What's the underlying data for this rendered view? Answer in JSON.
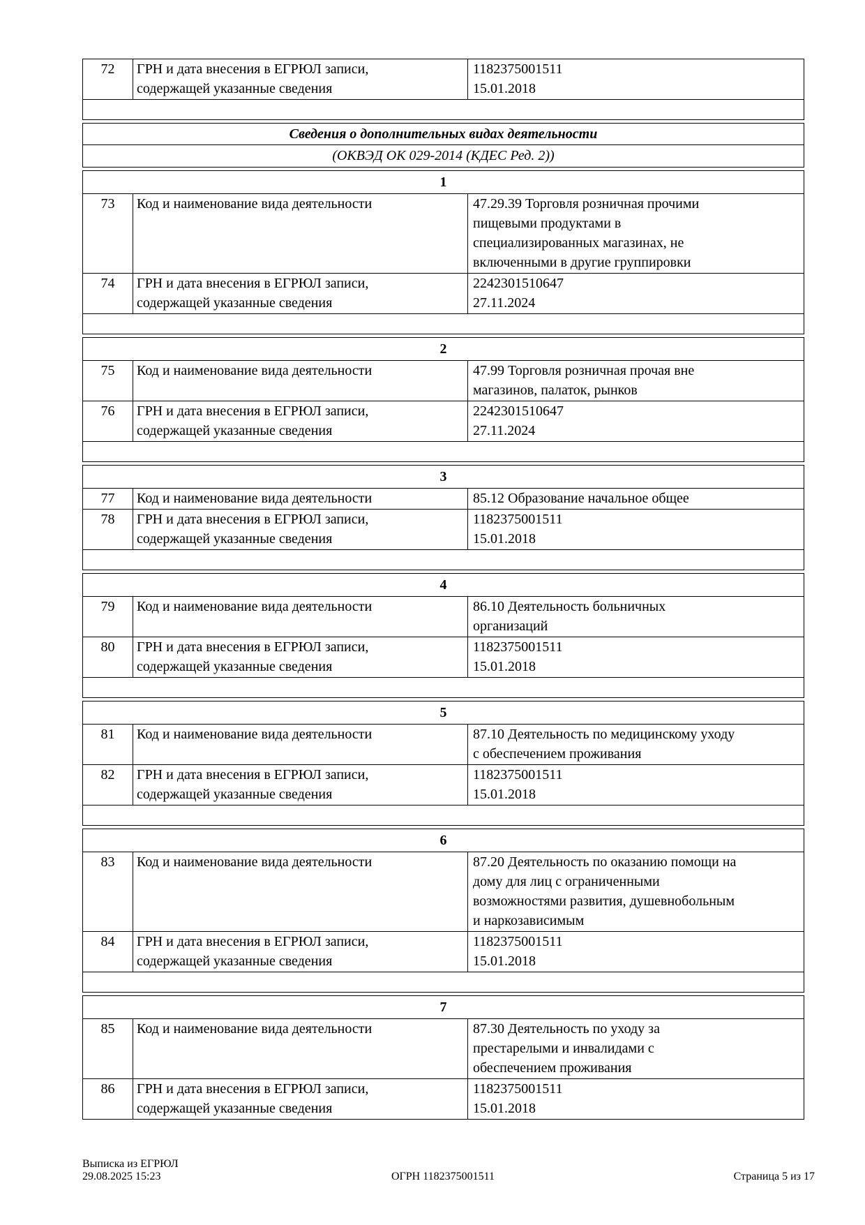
{
  "colors": {
    "page_bg": "#ffffff",
    "text": "#000000",
    "border": "#000000"
  },
  "continuation_row": {
    "num": "72",
    "label": "ГРН и дата внесения в ЕГРЮЛ записи,\nсодержащей указанные сведения",
    "value": "1182375001511\n15.01.2018"
  },
  "section_header": {
    "title": "Сведения о дополнительных видах деятельности",
    "subtitle": "(ОКВЭД ОК 029-2014 (КДЕС Ред. 2))"
  },
  "blocks": [
    {
      "index": "1",
      "rows": [
        {
          "num": "73",
          "label": "Код и наименование вида деятельности",
          "value": "47.29.39 Торговля розничная прочими\nпищевыми продуктами в\nспециализированных магазинах, не\nвключенными в другие группировки"
        },
        {
          "num": "74",
          "label": "ГРН и дата внесения в ЕГРЮЛ записи,\nсодержащей указанные сведения",
          "value": "2242301510647\n27.11.2024"
        }
      ]
    },
    {
      "index": "2",
      "rows": [
        {
          "num": "75",
          "label": "Код и наименование вида деятельности",
          "value": "47.99 Торговля розничная прочая вне\nмагазинов, палаток, рынков"
        },
        {
          "num": "76",
          "label": "ГРН и дата внесения в ЕГРЮЛ записи,\nсодержащей указанные сведения",
          "value": "2242301510647\n27.11.2024"
        }
      ]
    },
    {
      "index": "3",
      "rows": [
        {
          "num": "77",
          "label": "Код и наименование вида деятельности",
          "value": "85.12 Образование начальное общее"
        },
        {
          "num": "78",
          "label": "ГРН и дата внесения в ЕГРЮЛ записи,\nсодержащей указанные сведения",
          "value": "1182375001511\n15.01.2018"
        }
      ]
    },
    {
      "index": "4",
      "rows": [
        {
          "num": "79",
          "label": "Код и наименование вида деятельности",
          "value": "86.10 Деятельность больничных\nорганизаций"
        },
        {
          "num": "80",
          "label": "ГРН и дата внесения в ЕГРЮЛ записи,\nсодержащей указанные сведения",
          "value": "1182375001511\n15.01.2018"
        }
      ]
    },
    {
      "index": "5",
      "rows": [
        {
          "num": "81",
          "label": "Код и наименование вида деятельности",
          "value": "87.10 Деятельность по медицинскому уходу\nс обеспечением проживания"
        },
        {
          "num": "82",
          "label": "ГРН и дата внесения в ЕГРЮЛ записи,\nсодержащей указанные сведения",
          "value": "1182375001511\n15.01.2018"
        }
      ]
    },
    {
      "index": "6",
      "rows": [
        {
          "num": "83",
          "label": "Код и наименование вида деятельности",
          "value": "87.20 Деятельность по оказанию помощи на\nдому для лиц с ограниченными\nвозможностями развития, душевнобольным\nи наркозависимым"
        },
        {
          "num": "84",
          "label": "ГРН и дата внесения в ЕГРЮЛ записи,\nсодержащей указанные сведения",
          "value": "1182375001511\n15.01.2018"
        }
      ]
    },
    {
      "index": "7",
      "rows": [
        {
          "num": "85",
          "label": "Код и наименование вида деятельности",
          "value": "87.30 Деятельность по уходу за\nпрестарелыми и инвалидами с\nобеспечением проживания"
        },
        {
          "num": "86",
          "label": "ГРН и дата внесения в ЕГРЮЛ записи,\nсодержащей указанные сведения",
          "value": "1182375001511\n15.01.2018"
        }
      ]
    }
  ],
  "footer": {
    "doc_title": "Выписка из ЕГРЮЛ",
    "datetime": "29.08.2025 15:23",
    "ogrn": "ОГРН 1182375001511",
    "page": "Страница 5 из 17"
  }
}
